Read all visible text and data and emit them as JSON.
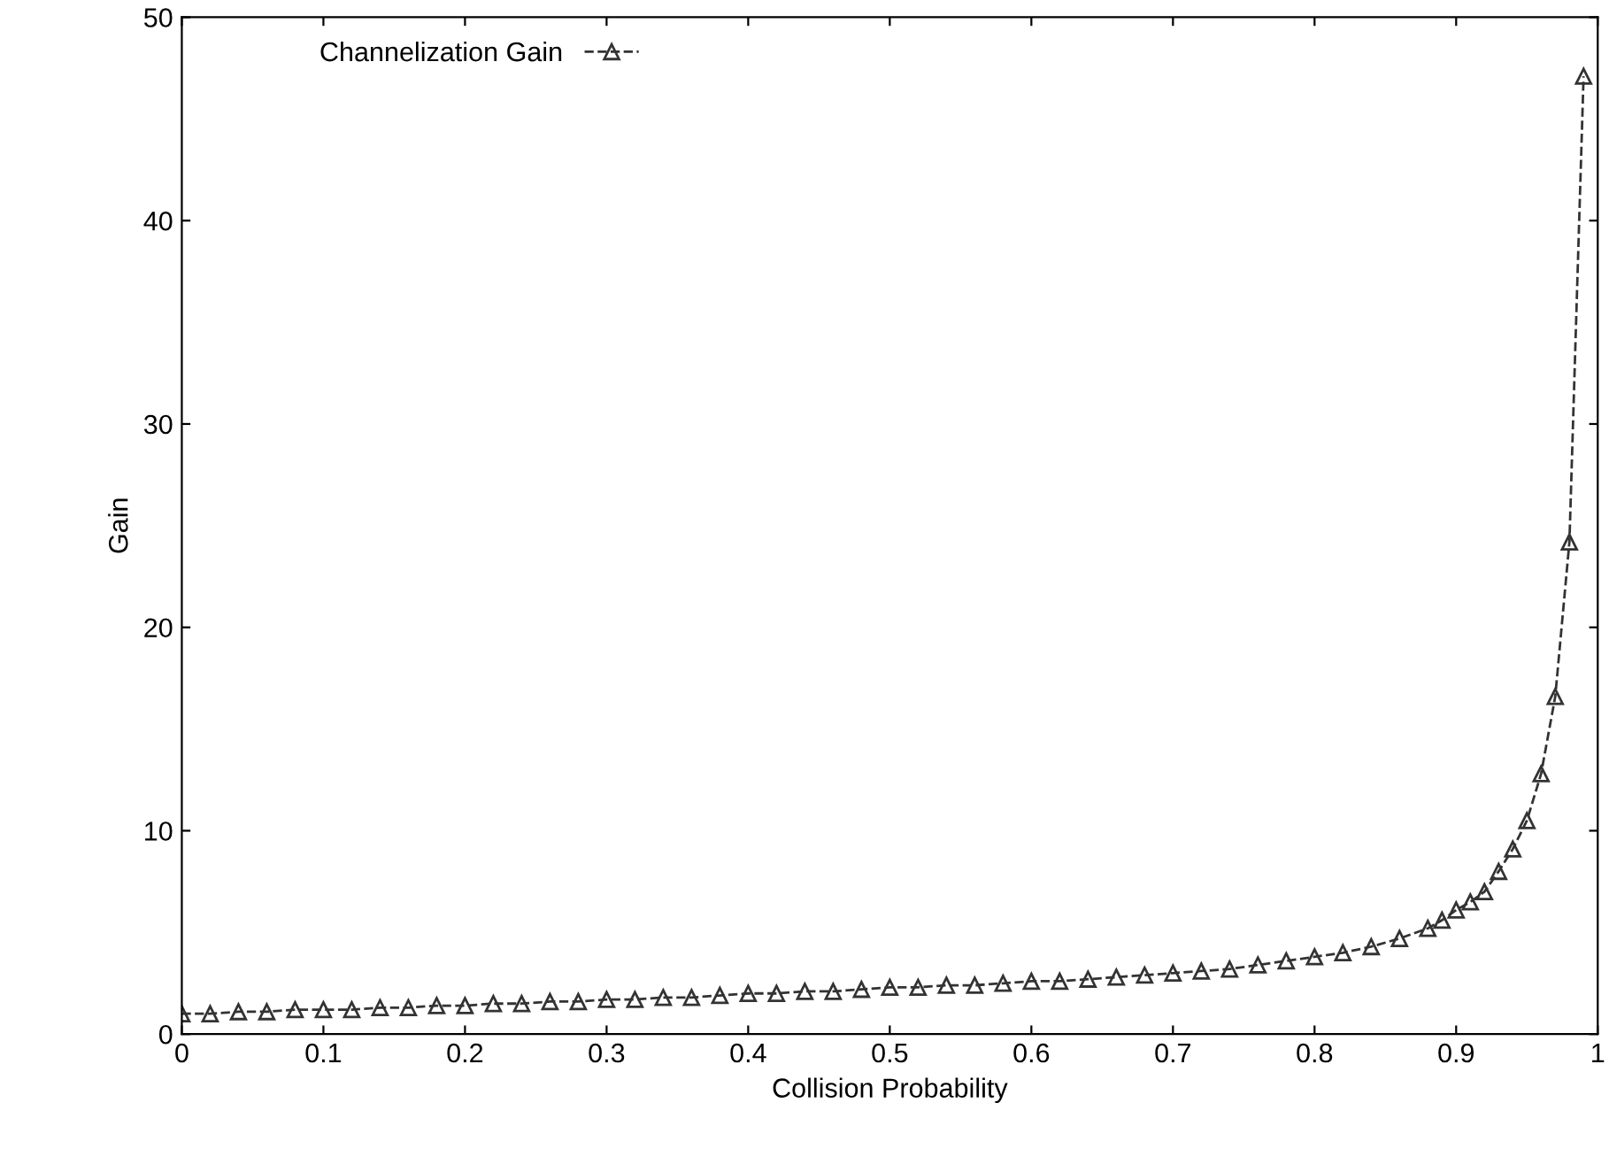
{
  "chart_data": {
    "type": "line",
    "xlabel": "Collision Probability",
    "ylabel": "Gain",
    "xlim": [
      0,
      1
    ],
    "ylim": [
      0,
      50
    ],
    "xticks": [
      0,
      0.1,
      0.2,
      0.3,
      0.4,
      0.5,
      0.6,
      0.7,
      0.8,
      0.9,
      1
    ],
    "yticks": [
      0,
      10,
      20,
      30,
      40,
      50
    ],
    "x": [
      0,
      0.02,
      0.04,
      0.06,
      0.08,
      0.1,
      0.12,
      0.14,
      0.16,
      0.18,
      0.2,
      0.22,
      0.24,
      0.26,
      0.28,
      0.3,
      0.32,
      0.34,
      0.36,
      0.38,
      0.4,
      0.42,
      0.44,
      0.46,
      0.48,
      0.5,
      0.52,
      0.54,
      0.56,
      0.58,
      0.6,
      0.62,
      0.64,
      0.66,
      0.68,
      0.7,
      0.72,
      0.74,
      0.76,
      0.78,
      0.8,
      0.82,
      0.84,
      0.86,
      0.88,
      0.89,
      0.9,
      0.91,
      0.92,
      0.93,
      0.94,
      0.95,
      0.96,
      0.97,
      0.98,
      0.99
    ],
    "series": [
      {
        "name": "Channelization Gain",
        "color": "#333333",
        "marker": "triangle",
        "line_style": "dashed",
        "values": [
          1.0,
          1.0,
          1.1,
          1.1,
          1.2,
          1.2,
          1.2,
          1.3,
          1.3,
          1.4,
          1.4,
          1.5,
          1.5,
          1.6,
          1.6,
          1.7,
          1.7,
          1.8,
          1.8,
          1.9,
          2.0,
          2.0,
          2.1,
          2.1,
          2.2,
          2.3,
          2.3,
          2.4,
          2.4,
          2.5,
          2.6,
          2.6,
          2.7,
          2.8,
          2.9,
          3.0,
          3.1,
          3.2,
          3.4,
          3.6,
          3.8,
          4.0,
          4.3,
          4.7,
          5.2,
          5.6,
          6.1,
          6.5,
          7.0,
          8.0,
          9.1,
          10.5,
          12.8,
          16.6,
          24.2,
          47.1
        ]
      }
    ],
    "grid": false,
    "legend": "top left"
  }
}
